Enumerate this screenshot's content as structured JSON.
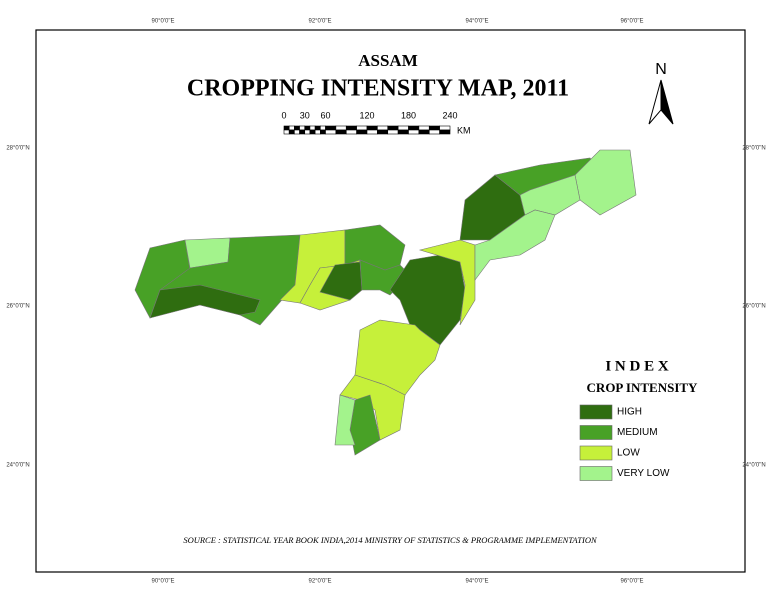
{
  "header": {
    "subtitle": "ASSAM",
    "title": "CROPPING INTENSITY MAP, 2011"
  },
  "north_arrow": "N",
  "scale_bar": {
    "ticks": [
      0,
      30,
      60,
      120,
      180,
      240
    ],
    "unit": "KM"
  },
  "longitude_labels": [
    "90°0'0\"E",
    "92°0'0\"E",
    "94°0'0\"E",
    "96°0'0\"E"
  ],
  "latitude_labels": [
    "28°0'0\"N",
    "26°0'0\"N",
    "24°0'0\"N"
  ],
  "legend": {
    "title": "I N D E X",
    "subtitle": "CROP INTENSITY",
    "items": [
      {
        "label": "HIGH",
        "color": "#2f6d10"
      },
      {
        "label": "MEDIUM",
        "color": "#48a126"
      },
      {
        "label": "LOW",
        "color": "#c6f03a"
      },
      {
        "label": "VERY LOW",
        "color": "#a3f38c"
      }
    ]
  },
  "source": "SOURCE : STATISTICAL YEAR BOOK INDIA,2014 MINISTRY OF STATISTICS & PROGRAMME IMPLEMENTATION"
}
